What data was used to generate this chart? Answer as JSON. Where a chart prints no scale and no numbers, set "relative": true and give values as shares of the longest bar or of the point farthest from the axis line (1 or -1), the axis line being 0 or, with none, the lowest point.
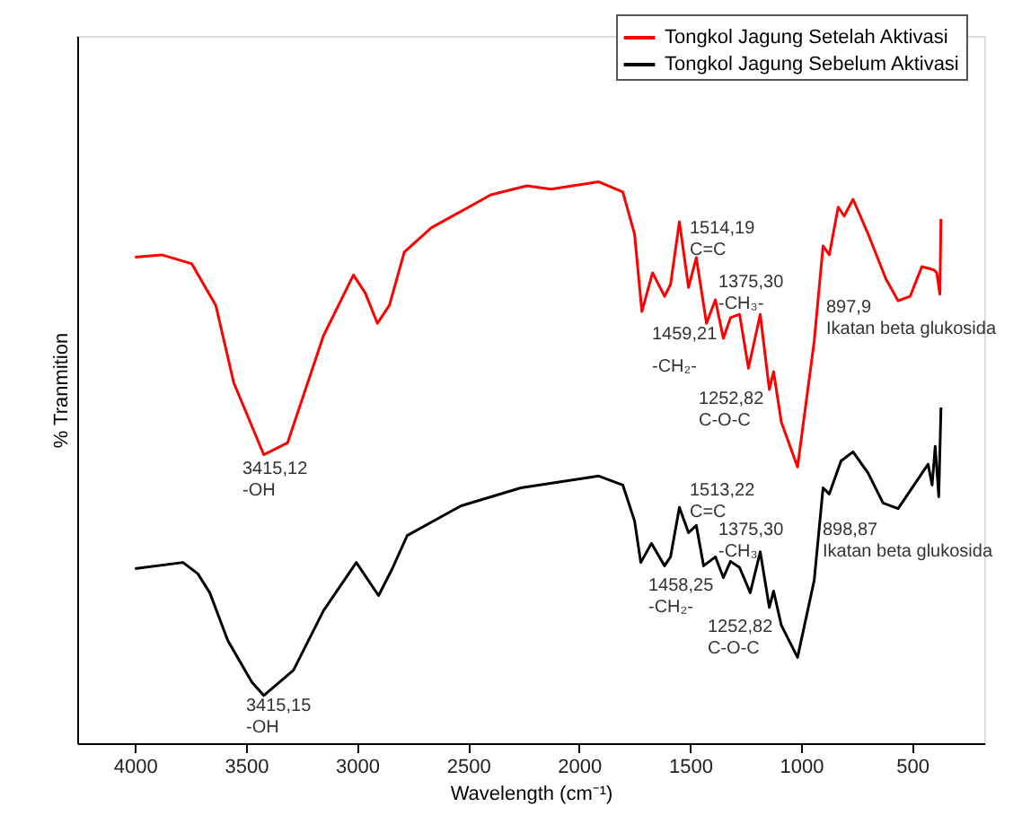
{
  "chart_data": {
    "type": "line",
    "relative": true,
    "xlabel": "Wavelength (cm⁻¹)",
    "ylabel": "% Tranmition",
    "xlim": [
      4260,
      175
    ],
    "xticks": [
      4000,
      3500,
      3000,
      2500,
      2000,
      1500,
      1000,
      500
    ],
    "grid": false,
    "legend": "top right",
    "tick_labels": "x",
    "marker": "none",
    "line_style": "solid",
    "series": [
      {
        "name": "Tongkol Jagung Setelah Aktivasi",
        "color": "#ff0000",
        "x": [
          4000,
          3879,
          3744,
          3636,
          3555,
          3420,
          3313,
          3151,
          3016,
          2963,
          2908,
          2854,
          2787,
          2666,
          2397,
          2235,
          2127,
          1911,
          1803,
          1750,
          1717,
          1669,
          1615,
          1588,
          1548,
          1507,
          1472,
          1426,
          1386,
          1350,
          1318,
          1277,
          1237,
          1184,
          1143,
          1124,
          1089,
          1016,
          941,
          901,
          873,
          833,
          806,
          766,
          698,
          618,
          563,
          509,
          456,
          402,
          389,
          375,
          370
        ],
        "values": [
          0.866,
          0.87,
          0.854,
          0.78,
          0.642,
          0.514,
          0.535,
          0.726,
          0.834,
          0.802,
          0.748,
          0.78,
          0.875,
          0.918,
          0.977,
          0.993,
          0.987,
          1.0,
          0.982,
          0.907,
          0.769,
          0.838,
          0.796,
          0.817,
          0.929,
          0.812,
          0.865,
          0.748,
          0.79,
          0.721,
          0.758,
          0.764,
          0.668,
          0.764,
          0.63,
          0.662,
          0.572,
          0.492,
          0.716,
          0.886,
          0.87,
          0.955,
          0.939,
          0.969,
          0.907,
          0.827,
          0.788,
          0.796,
          0.849,
          0.843,
          0.838,
          0.8,
          0.934
        ]
      },
      {
        "name": "Tongkol Jagung Sebelum Aktivasi",
        "color": "#000000",
        "x": [
          4000,
          3784,
          3717,
          3663,
          3582,
          3474,
          3420,
          3286,
          3151,
          3003,
          2949,
          2903,
          2841,
          2774,
          2531,
          2262,
          1911,
          1803,
          1750,
          1722,
          1674,
          1615,
          1588,
          1548,
          1507,
          1472,
          1439,
          1386,
          1350,
          1318,
          1277,
          1229,
          1184,
          1143,
          1124,
          1089,
          1016,
          941,
          901,
          873,
          820,
          766,
          698,
          631,
          563,
          428,
          410,
          396,
          380,
          370
        ],
        "values": [
          0.311,
          0.322,
          0.302,
          0.268,
          0.183,
          0.109,
          0.085,
          0.13,
          0.236,
          0.322,
          0.29,
          0.263,
          0.311,
          0.37,
          0.423,
          0.455,
          0.476,
          0.46,
          0.396,
          0.322,
          0.356,
          0.316,
          0.332,
          0.42,
          0.375,
          0.388,
          0.316,
          0.332,
          0.295,
          0.324,
          0.313,
          0.268,
          0.341,
          0.242,
          0.271,
          0.21,
          0.153,
          0.29,
          0.455,
          0.444,
          0.503,
          0.519,
          0.481,
          0.428,
          0.418,
          0.497,
          0.46,
          0.529,
          0.439,
          0.598
        ]
      }
    ],
    "annotations": [
      "3415,12\n-OH",
      "1514,19\nC=C",
      "1375,30\n-CH₃-",
      "1459,21",
      "-CH₂-",
      "1252,82\nC-O-C",
      "897,9\nIkatan beta glukosida",
      "3415,15\n-OH",
      "1513,22\nC=C",
      "1375,30\n-CH₃",
      "1458,25\n-CH₂-",
      "1252,82\nC-O-C",
      "898,87\nIkatan beta glukosida"
    ]
  }
}
